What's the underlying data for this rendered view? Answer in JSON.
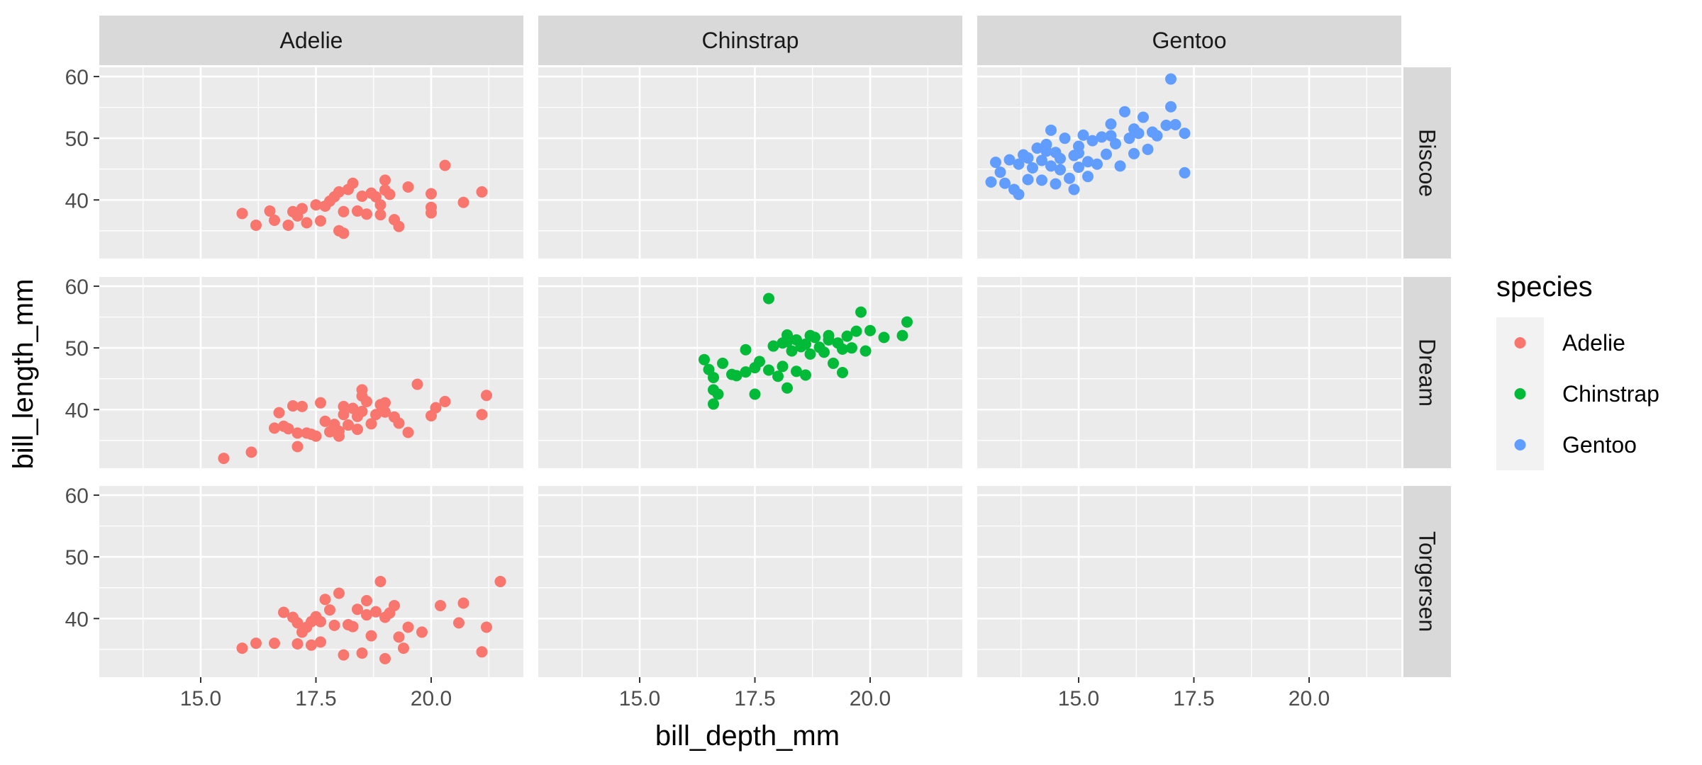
{
  "chart_data": {
    "type": "scatter",
    "xlabel": "bill_depth_mm",
    "ylabel": "bill_length_mm",
    "xlim": [
      12.8,
      22.0
    ],
    "ylim": [
      30.5,
      61.5
    ],
    "x_ticks": [
      15.0,
      17.5,
      20.0
    ],
    "x_tick_labels": [
      "15.0",
      "17.5",
      "20.0"
    ],
    "y_ticks": [
      40,
      50,
      60
    ],
    "y_tick_labels": [
      "40",
      "50",
      "60"
    ],
    "grid": true,
    "facet_cols": [
      "Adelie",
      "Chinstrap",
      "Gentoo"
    ],
    "facet_rows": [
      "Biscoe",
      "Dream",
      "Torgersen"
    ],
    "legend": {
      "title": "species",
      "placement": "right",
      "entries": [
        {
          "name": "Adelie",
          "color": "#F8766D"
        },
        {
          "name": "Chinstrap",
          "color": "#00BA38"
        },
        {
          "name": "Gentoo",
          "color": "#619CFF"
        }
      ]
    },
    "panels": [
      {
        "species": "Adelie",
        "island": "Biscoe",
        "points": [
          [
            15.9,
            37.8
          ],
          [
            16.2,
            35.9
          ],
          [
            16.5,
            38.2
          ],
          [
            16.6,
            36.7
          ],
          [
            16.9,
            35.9
          ],
          [
            17.0,
            38.1
          ],
          [
            17.1,
            37.4
          ],
          [
            17.2,
            38.6
          ],
          [
            17.3,
            36.3
          ],
          [
            17.5,
            39.2
          ],
          [
            17.6,
            36.6
          ],
          [
            17.8,
            39.8
          ],
          [
            17.9,
            40.5
          ],
          [
            18.0,
            41.3
          ],
          [
            18.0,
            35.0
          ],
          [
            18.1,
            34.6
          ],
          [
            18.2,
            41.7
          ],
          [
            18.3,
            42.7
          ],
          [
            18.4,
            38.2
          ],
          [
            18.5,
            40.6
          ],
          [
            18.6,
            37.7
          ],
          [
            18.7,
            41.1
          ],
          [
            18.8,
            40.5
          ],
          [
            18.9,
            37.6
          ],
          [
            18.9,
            39.2
          ],
          [
            19.0,
            43.2
          ],
          [
            19.1,
            40.9
          ],
          [
            19.2,
            36.8
          ],
          [
            19.3,
            35.7
          ],
          [
            19.5,
            42.1
          ],
          [
            20.0,
            41.0
          ],
          [
            20.0,
            37.9
          ],
          [
            20.0,
            38.8
          ],
          [
            20.3,
            45.6
          ],
          [
            20.7,
            39.6
          ],
          [
            21.1,
            41.3
          ],
          [
            18.1,
            38.1
          ],
          [
            17.7,
            39.0
          ],
          [
            19.0,
            41.6
          ]
        ]
      },
      {
        "species": "Adelie",
        "island": "Dream",
        "points": [
          [
            15.5,
            32.1
          ],
          [
            16.1,
            33.1
          ],
          [
            16.6,
            37.0
          ],
          [
            16.7,
            39.5
          ],
          [
            16.8,
            37.3
          ],
          [
            16.9,
            36.9
          ],
          [
            17.0,
            40.6
          ],
          [
            17.1,
            36.2
          ],
          [
            17.1,
            34.0
          ],
          [
            17.2,
            40.5
          ],
          [
            17.4,
            36.0
          ],
          [
            17.5,
            35.7
          ],
          [
            17.6,
            41.1
          ],
          [
            17.7,
            38.1
          ],
          [
            17.8,
            36.4
          ],
          [
            17.9,
            37.6
          ],
          [
            18.0,
            35.7
          ],
          [
            18.0,
            36.5
          ],
          [
            18.1,
            39.2
          ],
          [
            18.2,
            37.5
          ],
          [
            18.3,
            40.2
          ],
          [
            18.4,
            38.9
          ],
          [
            18.5,
            39.7
          ],
          [
            18.5,
            43.2
          ],
          [
            18.5,
            42.2
          ],
          [
            18.6,
            41.3
          ],
          [
            18.7,
            37.7
          ],
          [
            18.8,
            39.2
          ],
          [
            18.9,
            40.8
          ],
          [
            19.0,
            39.6
          ],
          [
            19.0,
            41.1
          ],
          [
            19.2,
            38.8
          ],
          [
            19.3,
            37.8
          ],
          [
            19.5,
            36.3
          ],
          [
            19.7,
            44.1
          ],
          [
            20.0,
            39.0
          ],
          [
            20.1,
            40.3
          ],
          [
            20.3,
            41.3
          ],
          [
            21.1,
            39.2
          ],
          [
            21.2,
            42.3
          ],
          [
            18.4,
            36.8
          ],
          [
            18.1,
            40.5
          ],
          [
            17.3,
            36.2
          ]
        ]
      },
      {
        "species": "Adelie",
        "island": "Torgersen",
        "points": [
          [
            15.9,
            35.2
          ],
          [
            16.2,
            36.0
          ],
          [
            16.6,
            36.0
          ],
          [
            16.8,
            41.0
          ],
          [
            17.0,
            40.2
          ],
          [
            17.1,
            39.3
          ],
          [
            17.1,
            35.9
          ],
          [
            17.2,
            37.8
          ],
          [
            17.3,
            38.6
          ],
          [
            17.4,
            39.5
          ],
          [
            17.4,
            35.7
          ],
          [
            17.6,
            39.5
          ],
          [
            17.6,
            36.2
          ],
          [
            17.7,
            43.1
          ],
          [
            17.8,
            41.4
          ],
          [
            17.9,
            38.9
          ],
          [
            18.0,
            44.1
          ],
          [
            18.1,
            34.1
          ],
          [
            18.2,
            39.0
          ],
          [
            18.3,
            38.7
          ],
          [
            18.4,
            41.5
          ],
          [
            18.5,
            34.4
          ],
          [
            18.6,
            42.9
          ],
          [
            18.7,
            37.2
          ],
          [
            18.8,
            41.1
          ],
          [
            18.9,
            46.0
          ],
          [
            19.0,
            33.5
          ],
          [
            19.1,
            40.9
          ],
          [
            19.2,
            42.1
          ],
          [
            19.3,
            37.0
          ],
          [
            19.4,
            35.2
          ],
          [
            19.5,
            38.6
          ],
          [
            19.8,
            37.8
          ],
          [
            20.2,
            42.1
          ],
          [
            20.6,
            39.3
          ],
          [
            20.7,
            42.5
          ],
          [
            21.1,
            34.6
          ],
          [
            21.2,
            38.6
          ],
          [
            21.5,
            46.0
          ],
          [
            17.5,
            40.3
          ],
          [
            18.6,
            40.6
          ],
          [
            19.0,
            40.2
          ]
        ]
      },
      {
        "species": "Chinstrap",
        "island": "Dream",
        "points": [
          [
            16.4,
            48.1
          ],
          [
            16.5,
            46.5
          ],
          [
            16.6,
            45.2
          ],
          [
            16.6,
            43.2
          ],
          [
            16.6,
            40.9
          ],
          [
            16.7,
            42.5
          ],
          [
            16.8,
            47.5
          ],
          [
            17.0,
            45.7
          ],
          [
            17.1,
            45.5
          ],
          [
            17.3,
            46.1
          ],
          [
            17.3,
            49.7
          ],
          [
            17.5,
            46.8
          ],
          [
            17.5,
            42.5
          ],
          [
            17.6,
            47.8
          ],
          [
            17.8,
            58.0
          ],
          [
            17.8,
            46.4
          ],
          [
            17.9,
            50.3
          ],
          [
            18.0,
            45.4
          ],
          [
            18.1,
            50.8
          ],
          [
            18.1,
            47.0
          ],
          [
            18.2,
            51.0
          ],
          [
            18.2,
            43.5
          ],
          [
            18.3,
            49.5
          ],
          [
            18.4,
            51.3
          ],
          [
            18.4,
            46.2
          ],
          [
            18.5,
            50.2
          ],
          [
            18.6,
            50.6
          ],
          [
            18.7,
            52.0
          ],
          [
            18.7,
            49.0
          ],
          [
            18.8,
            51.7
          ],
          [
            18.9,
            50.1
          ],
          [
            19.0,
            49.3
          ],
          [
            19.1,
            52.0
          ],
          [
            19.2,
            47.5
          ],
          [
            19.3,
            50.8
          ],
          [
            19.4,
            49.8
          ],
          [
            19.5,
            51.9
          ],
          [
            19.6,
            50.0
          ],
          [
            19.7,
            52.7
          ],
          [
            19.8,
            55.8
          ],
          [
            19.9,
            49.5
          ],
          [
            20.0,
            52.8
          ],
          [
            20.3,
            51.7
          ],
          [
            20.7,
            52.0
          ],
          [
            20.8,
            54.2
          ],
          [
            19.4,
            46.0
          ],
          [
            18.6,
            45.6
          ],
          [
            19.1,
            51.3
          ],
          [
            18.2,
            52.1
          ]
        ]
      },
      {
        "species": "Gentoo",
        "island": "Biscoe",
        "points": [
          [
            13.1,
            42.9
          ],
          [
            13.2,
            46.1
          ],
          [
            13.3,
            44.5
          ],
          [
            13.4,
            42.7
          ],
          [
            13.5,
            46.5
          ],
          [
            13.6,
            41.7
          ],
          [
            13.7,
            45.8
          ],
          [
            13.7,
            40.9
          ],
          [
            13.8,
            47.3
          ],
          [
            13.9,
            43.3
          ],
          [
            14.0,
            45.2
          ],
          [
            14.1,
            48.4
          ],
          [
            14.2,
            46.4
          ],
          [
            14.2,
            43.2
          ],
          [
            14.3,
            49.0
          ],
          [
            14.4,
            45.5
          ],
          [
            14.4,
            51.3
          ],
          [
            14.5,
            47.7
          ],
          [
            14.5,
            42.6
          ],
          [
            14.6,
            46.7
          ],
          [
            14.7,
            50.0
          ],
          [
            14.8,
            43.5
          ],
          [
            14.9,
            47.2
          ],
          [
            14.9,
            41.7
          ],
          [
            15.0,
            45.3
          ],
          [
            15.0,
            48.7
          ],
          [
            15.1,
            50.5
          ],
          [
            15.2,
            46.2
          ],
          [
            15.3,
            49.6
          ],
          [
            15.4,
            45.8
          ],
          [
            15.5,
            50.2
          ],
          [
            15.6,
            47.4
          ],
          [
            15.7,
            52.3
          ],
          [
            15.8,
            49.1
          ],
          [
            15.9,
            45.5
          ],
          [
            16.0,
            54.3
          ],
          [
            16.1,
            50.0
          ],
          [
            16.2,
            47.5
          ],
          [
            16.3,
            50.8
          ],
          [
            16.4,
            53.4
          ],
          [
            16.5,
            48.2
          ],
          [
            16.6,
            51.0
          ],
          [
            16.7,
            50.4
          ],
          [
            16.9,
            52.1
          ],
          [
            17.0,
            59.6
          ],
          [
            17.0,
            55.1
          ],
          [
            17.1,
            52.2
          ],
          [
            17.3,
            44.4
          ],
          [
            17.3,
            50.8
          ],
          [
            14.6,
            44.9
          ],
          [
            15.2,
            43.8
          ],
          [
            14.3,
            47.9
          ],
          [
            15.7,
            50.4
          ],
          [
            16.2,
            51.5
          ],
          [
            13.9,
            46.8
          ],
          [
            15.0,
            47.6
          ]
        ]
      }
    ]
  }
}
